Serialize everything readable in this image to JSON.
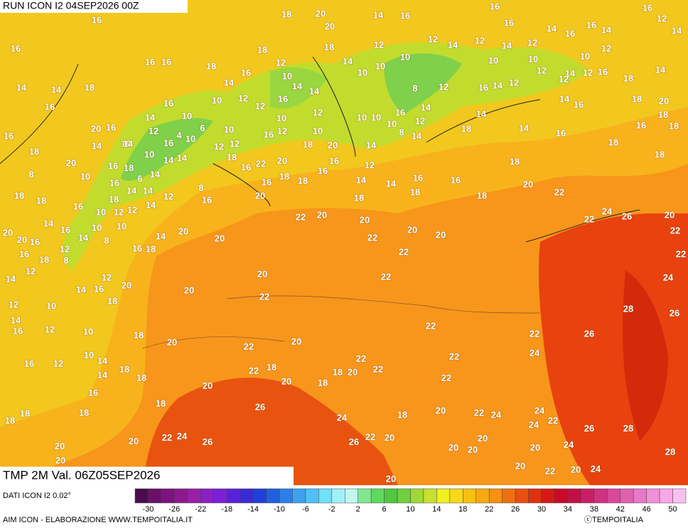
{
  "header": {
    "run": "RUN ICON I2 04SEP2026 00Z",
    "field": "TMP 2M Val. 06Z05SEP2026",
    "source": "DATI ICON I2 0.02°",
    "credit": "AIM ICON - ELABORAZIONE WWW.TEMPOITALIA.IT",
    "copyright": "ⓒTEMPOITALIA"
  },
  "map": {
    "labels": [
      18,
      20,
      14,
      16,
      16,
      16,
      16,
      20,
      16,
      14,
      16,
      16,
      14,
      12,
      14,
      16,
      16,
      16,
      18,
      18,
      16,
      12,
      10,
      18,
      14,
      12,
      10,
      10,
      10,
      12,
      14,
      12,
      14,
      12,
      10,
      10,
      10,
      12,
      12,
      14,
      12,
      16,
      18,
      14,
      14,
      18,
      14,
      16,
      16,
      10,
      14,
      12,
      12,
      16,
      14,
      14,
      12,
      16,
      14,
      12,
      12,
      8,
      14,
      16,
      18,
      20,
      18,
      16,
      18,
      14,
      10,
      12,
      4,
      6,
      10,
      14,
      10,
      16,
      12,
      10,
      10,
      12,
      10,
      10,
      10,
      8,
      14,
      16,
      12,
      14,
      18,
      14,
      14,
      16,
      18,
      18,
      16,
      18,
      20,
      16,
      14,
      10,
      16,
      14,
      14,
      10,
      12,
      12,
      18,
      16,
      22,
      20,
      18,
      20,
      14,
      12,
      16,
      16,
      18,
      18,
      16,
      20,
      20,
      16,
      18,
      10,
      14,
      6,
      8,
      18,
      18,
      16,
      14,
      14,
      12,
      8,
      16,
      18,
      10,
      12,
      16,
      12,
      14,
      14,
      16,
      14,
      10,
      10,
      20,
      20,
      16,
      12,
      8,
      18,
      16,
      12,
      14,
      8,
      16,
      18,
      14,
      20,
      20,
      22,
      20,
      20,
      22,
      22,
      20,
      20,
      18,
      14,
      14,
      18,
      16,
      16,
      18,
      18,
      20,
      22,
      22,
      24,
      26,
      20,
      22,
      22,
      24,
      26,
      28,
      26,
      22,
      24,
      22,
      22,
      22,
      22,
      20,
      22,
      20,
      20,
      12,
      16,
      14,
      18,
      10,
      12,
      14,
      16,
      12,
      18,
      20,
      22,
      20,
      22,
      22,
      18,
      20,
      18,
      22,
      20,
      18,
      20,
      10,
      10,
      12,
      16,
      14,
      14,
      18,
      18,
      16,
      18,
      18,
      18,
      18,
      26,
      24,
      18,
      20,
      22,
      24,
      24,
      24,
      22,
      26,
      28,
      22,
      24,
      20,
      26,
      26,
      22,
      20,
      20,
      20,
      20,
      20,
      24,
      28,
      20,
      20,
      20,
      22,
      20,
      24,
      20
    ]
  },
  "colorbar": {
    "ticks": [
      -30,
      -26,
      -22,
      -18,
      -14,
      -10,
      -6,
      -2,
      2,
      6,
      10,
      14,
      18,
      22,
      26,
      30,
      34,
      38,
      42,
      46,
      50
    ],
    "colors": [
      "#4b0c4b",
      "#6a0f6a",
      "#7d137d",
      "#8c1a8c",
      "#9a1fa6",
      "#8a1fc4",
      "#7a20d8",
      "#5a22d8",
      "#3a2ad6",
      "#2040d8",
      "#2060e0",
      "#2a80e8",
      "#40a0f0",
      "#50c0f8",
      "#70e0f8",
      "#a0f0f8",
      "#c0f8f0",
      "#80e890",
      "#60d860",
      "#50c840",
      "#70d040",
      "#a0d838",
      "#c8e030",
      "#f0f020",
      "#f8d818",
      "#f8c010",
      "#f8a810",
      "#f89010",
      "#f07010",
      "#e85010",
      "#e03010",
      "#d81818",
      "#c80a28",
      "#c01048",
      "#c82068",
      "#d03080",
      "#d84898",
      "#e060b0",
      "#e878c8",
      "#f090d8",
      "#f8a8e8",
      "#f8c0f0"
    ]
  }
}
